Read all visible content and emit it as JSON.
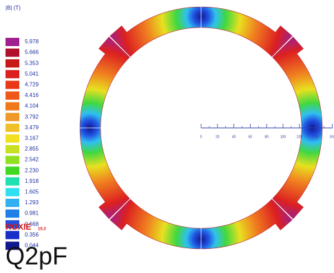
{
  "legend": {
    "title": "|B| (T)",
    "labels": [
      "5.978",
      "5.666",
      "5.353",
      "5.041",
      "4.729",
      "4.416",
      "4.104",
      "3.792",
      "3.479",
      "3.167",
      "2.855",
      "2.542",
      "2.230",
      "1.918",
      "1.605",
      "1.293",
      "0.981",
      "0.668",
      "0.356",
      "0.044"
    ],
    "colors": [
      "#a0208f",
      "#b0102a",
      "#c81818",
      "#dc2020",
      "#e83818",
      "#f05818",
      "#f07818",
      "#f09828",
      "#f0c028",
      "#f0e020",
      "#c8e020",
      "#90e020",
      "#40d820",
      "#20e0b0",
      "#30e0f0",
      "#30b0f0",
      "#2080e8",
      "#2050e0",
      "#1830c8",
      "#101890"
    ]
  },
  "scale": {
    "ticks": [
      0,
      20,
      40,
      60,
      80,
      100,
      120,
      140,
      160
    ]
  },
  "logo": {
    "name": "ROXIE",
    "version": "10.2"
  },
  "caption": "Q2pF"
}
